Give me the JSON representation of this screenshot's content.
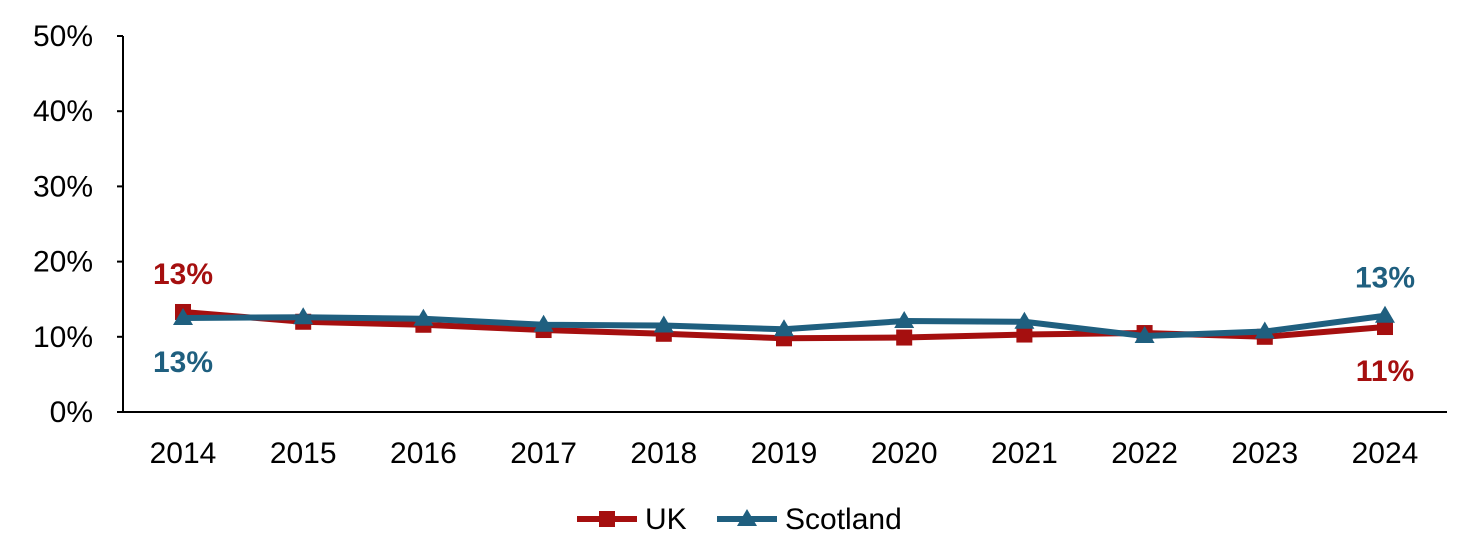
{
  "chart_data": {
    "type": "line",
    "title": "",
    "xlabel": "",
    "ylabel": "",
    "categories": [
      "2014",
      "2015",
      "2016",
      "2017",
      "2018",
      "2019",
      "2020",
      "2021",
      "2022",
      "2023",
      "2024"
    ],
    "ylim": [
      0,
      50
    ],
    "yticks": [
      0,
      10,
      20,
      30,
      40,
      50
    ],
    "ytick_labels": [
      "0%",
      "10%",
      "20%",
      "30%",
      "40%",
      "50%"
    ],
    "grid": false,
    "legend_position": "bottom",
    "series": [
      {
        "name": "UK",
        "color": "#A50F0F",
        "marker": "square",
        "values": [
          13.3,
          12.0,
          11.6,
          10.9,
          10.4,
          9.8,
          9.9,
          10.3,
          10.5,
          10.0,
          11.3
        ],
        "labels": [
          {
            "index": 0,
            "text": "13%",
            "placement": "above"
          },
          {
            "index": 10,
            "text": "11%",
            "placement": "below"
          }
        ]
      },
      {
        "name": "Scotland",
        "color": "#1F5F7F",
        "marker": "triangle",
        "values": [
          12.5,
          12.6,
          12.4,
          11.6,
          11.5,
          11.0,
          12.1,
          12.0,
          10.1,
          10.7,
          12.8
        ],
        "labels": [
          {
            "index": 0,
            "text": "13%",
            "placement": "below"
          },
          {
            "index": 10,
            "text": "13%",
            "placement": "above"
          }
        ]
      }
    ]
  }
}
